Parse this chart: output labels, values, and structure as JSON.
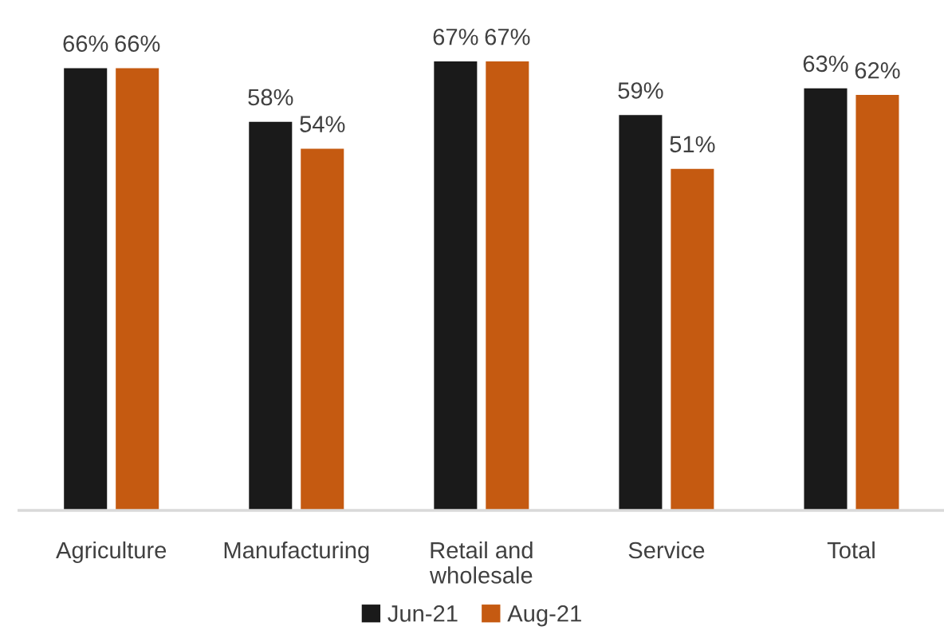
{
  "chart_data": {
    "type": "bar",
    "categories": [
      "Agriculture",
      "Manufacturing",
      "Retail and\nwholesale",
      "Service",
      "Total"
    ],
    "series": [
      {
        "name": "Jun-21",
        "color": "#1a1a1a",
        "values": [
          66,
          58,
          67,
          59,
          63
        ],
        "value_labels": [
          "66%",
          "58%",
          "67%",
          "59%",
          "63%"
        ]
      },
      {
        "name": "Aug-21",
        "color": "#c55a11",
        "values": [
          66,
          54,
          67,
          51,
          62
        ],
        "value_labels": [
          "66%",
          "54%",
          "67%",
          "51%",
          "62%"
        ]
      }
    ],
    "legend": "bottom",
    "grid": false
  }
}
